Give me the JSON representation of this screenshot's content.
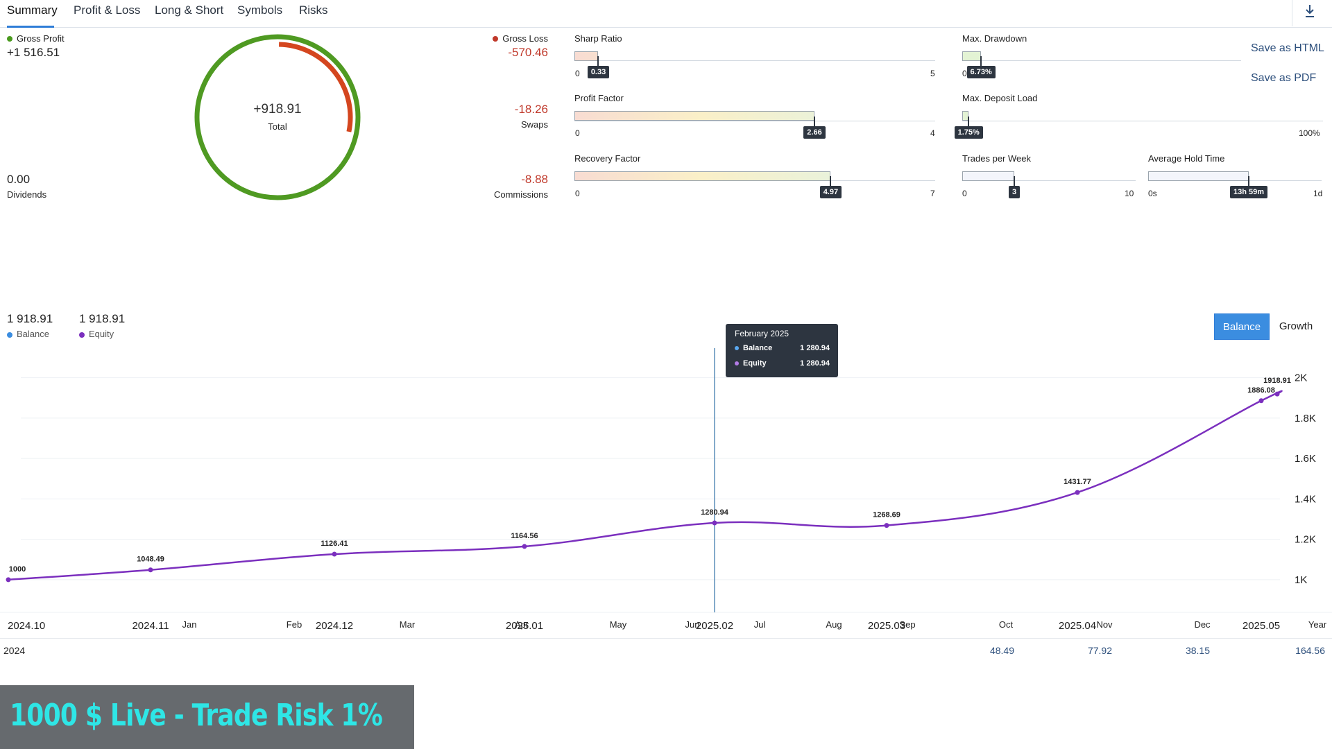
{
  "tabs": [
    {
      "label": "Summary",
      "active": true
    },
    {
      "label": "Profit & Loss",
      "active": false
    },
    {
      "label": "Long & Short",
      "active": false
    },
    {
      "label": "Symbols",
      "active": false
    },
    {
      "label": "Risks",
      "active": false
    }
  ],
  "download_icon": "download-icon",
  "summary": {
    "gross_profit": {
      "label": "Gross Profit",
      "value": "+1 516.51",
      "color": "#4a9a1e"
    },
    "gross_loss": {
      "label": "Gross Loss",
      "value": "-570.46",
      "color": "#c0392b"
    },
    "total": {
      "value": "+918.91",
      "label": "Total"
    },
    "dividends": {
      "value": "0.00",
      "label": "Dividends"
    },
    "swaps": {
      "value": "-18.26",
      "label": "Swaps"
    },
    "commissions": {
      "value": "-8.88",
      "label": "Commissions"
    },
    "ring": {
      "profit": 1516.51,
      "loss": 570.46
    }
  },
  "metrics": {
    "sharp_ratio": {
      "title": "Sharp Ratio",
      "min": "0",
      "max": "5",
      "value": "0.33",
      "fraction": 0.066
    },
    "profit_factor": {
      "title": "Profit Factor",
      "min": "0",
      "max": "4",
      "value": "2.66",
      "fraction": 0.665
    },
    "recovery_factor": {
      "title": "Recovery Factor",
      "min": "0",
      "max": "7",
      "value": "4.97",
      "fraction": 0.71
    },
    "max_drawdown": {
      "title": "Max. Drawdown",
      "min": "0%",
      "value": "6.73%",
      "fraction": 0.0673
    },
    "max_deposit_load": {
      "title": "Max. Deposit Load",
      "max": "100%",
      "value": "1.75%",
      "fraction": 0.0175
    },
    "trades_per_week": {
      "title": "Trades per Week",
      "min": "0",
      "max": "10",
      "value": "3",
      "fraction": 0.3
    },
    "avg_hold_time": {
      "title": "Average Hold Time",
      "min": "0s",
      "max": "1d",
      "value": "13h 59m",
      "fraction": 0.58
    }
  },
  "save": {
    "html": "Save as HTML",
    "pdf": "Save as PDF"
  },
  "chart_header": {
    "balance_value": "1 918.91",
    "balance_label": "Balance",
    "equity_value": "1 918.91",
    "equity_label": "Equity",
    "balance_color": "#3b8de0",
    "equity_color": "#7b2fbe"
  },
  "toggle": {
    "balance": "Balance",
    "growth": "Growth"
  },
  "tooltip": {
    "title": "February 2025",
    "balance_label": "Balance",
    "balance_value": "1 280.94",
    "equity_label": "Equity",
    "equity_value": "1 280.94"
  },
  "chart_data": {
    "type": "line",
    "x": [
      "2024.10",
      "2024.11",
      "2024.12",
      "2025.01",
      "2025.02",
      "2025.03",
      "2025.04",
      "2025.05",
      "2025.05"
    ],
    "series": [
      {
        "name": "Equity",
        "values": [
          1000,
          1048.49,
          1126.41,
          1164.56,
          1280.94,
          1268.69,
          1431.77,
          1886.08,
          1918.91
        ],
        "color": "#7b2fbe"
      }
    ],
    "point_labels": [
      "1000",
      "1048.49",
      "1126.41",
      "1164.56",
      "1280.94",
      "1268.69",
      "1431.77",
      "1886.08",
      "1918.91"
    ],
    "x_tick_labels": [
      "2024.10",
      "2024.11",
      "2024.12",
      "2025.01",
      "2025.02",
      "2025.03",
      "2025.04",
      "2025.05"
    ],
    "ylim": [
      900,
      2050
    ],
    "y_ticks": [
      1000,
      1200,
      1400,
      1600,
      1800,
      2000
    ],
    "y_tick_labels": [
      "1K",
      "1.2K",
      "1.4K",
      "1.6K",
      "1.8K",
      "2K"
    ],
    "grid": true,
    "crosshair_at": "2025.02"
  },
  "month_row": [
    "Jan",
    "Feb",
    "Mar",
    "Apr",
    "May",
    "Jun",
    "Jul",
    "Aug",
    "Sep",
    "Oct",
    "Nov",
    "Dec",
    "Year"
  ],
  "year_row": {
    "year": "2024",
    "values": [
      "48.49",
      "77.92",
      "38.15",
      "164.56"
    ]
  },
  "banner": {
    "text": "1000 $ Live - Trade Risk 1%"
  }
}
